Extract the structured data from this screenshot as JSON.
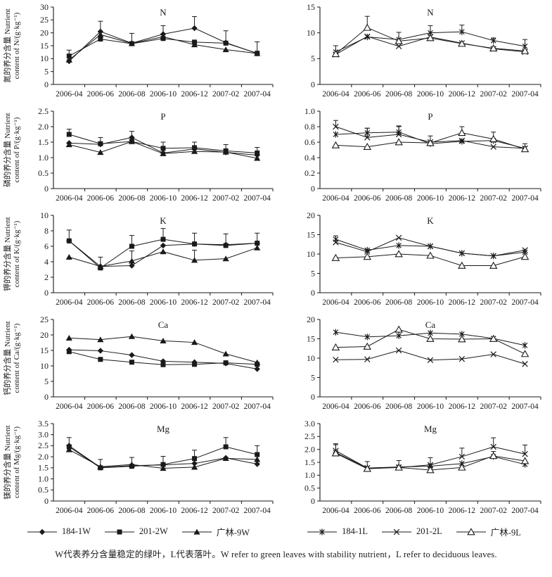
{
  "ink": "#1a1a1a",
  "caption": "W代表养分含量稳定的绿叶，L代表落叶。W refer to green leaves with stability nutrient，L refer to deciduous leaves.",
  "categories": [
    "2006-04",
    "2006-06",
    "2006-08",
    "2006-10",
    "2006-12",
    "2007-02",
    "2007-04"
  ],
  "legends": {
    "left": [
      {
        "marker": "diamond",
        "label": "184-1W"
      },
      {
        "marker": "square",
        "label": "201-2W"
      },
      {
        "marker": "triangle",
        "label": "广林-9W"
      }
    ],
    "right": [
      {
        "marker": "star",
        "label": "184-1L"
      },
      {
        "marker": "x",
        "label": "201-2L"
      },
      {
        "marker": "triangle-open",
        "label": "广林-9L"
      }
    ]
  },
  "chart_data": [
    {
      "type": "line",
      "title": "N",
      "col": "left",
      "ylabel_cn": "氮的养分含量 Nutrient",
      "ylabel_en": "content of N/(g·kg⁻¹)",
      "ylim": [
        0,
        30
      ],
      "yticks": [
        [
          0,
          "0"
        ],
        [
          5,
          "5"
        ],
        [
          10,
          "10"
        ],
        [
          15,
          "15"
        ],
        [
          20,
          "20"
        ],
        [
          25,
          "25"
        ],
        [
          30,
          "30"
        ]
      ],
      "series": [
        {
          "name": "184-1W",
          "marker": "diamond",
          "values": [
            9.0,
            20.5,
            16.0,
            19.5,
            21.8,
            16.2,
            12.0
          ],
          "err": [
            0.6,
            4.0,
            3.8,
            3.3,
            4.5,
            4.6,
            4.5
          ]
        },
        {
          "name": "201-2W",
          "marker": "square",
          "values": [
            11.0,
            17.6,
            15.8,
            17.8,
            16.4,
            16.0,
            12.1
          ],
          "err": [
            2.3,
            0,
            0,
            0,
            0,
            0,
            0
          ]
        },
        {
          "name": "广林-9W",
          "marker": "triangle",
          "values": [
            9.5,
            19.3,
            15.9,
            18.5,
            15.4,
            13.5,
            12.0
          ],
          "err": [
            0,
            0,
            0,
            0,
            0,
            0,
            0
          ]
        }
      ]
    },
    {
      "type": "line",
      "title": "N",
      "col": "right",
      "ylabel_cn": "",
      "ylabel_en": "",
      "ylim": [
        0,
        15
      ],
      "yticks": [
        [
          0,
          "0"
        ],
        [
          5,
          "5"
        ],
        [
          10,
          "10"
        ],
        [
          15,
          "15"
        ]
      ],
      "series": [
        {
          "name": "184-1L",
          "marker": "star",
          "values": [
            6.3,
            9.2,
            8.7,
            10.0,
            10.2,
            8.5,
            7.4
          ],
          "err": [
            1.2,
            0,
            1.4,
            1.4,
            1.3,
            0.5,
            1.3
          ]
        },
        {
          "name": "201-2L",
          "marker": "x",
          "values": [
            5.8,
            9.3,
            7.4,
            9.2,
            8.0,
            6.9,
            6.3
          ],
          "err": [
            0,
            0,
            0,
            0,
            0,
            0,
            0
          ]
        },
        {
          "name": "广林-9L",
          "marker": "triangle-open",
          "values": [
            5.9,
            11.0,
            8.4,
            9.0,
            7.9,
            7.0,
            6.5
          ],
          "err": [
            0,
            2.2,
            0,
            0,
            0,
            0,
            0
          ]
        }
      ]
    },
    {
      "type": "line",
      "title": "P",
      "col": "left",
      "ylabel_cn": "磷的养分含量 Nutrient",
      "ylabel_en": "content of P/(g·kg⁻¹)",
      "ylim": [
        0,
        2.5
      ],
      "yticks": [
        [
          0,
          "0"
        ],
        [
          0.5,
          "0.5"
        ],
        [
          1.0,
          "1.0"
        ],
        [
          1.5,
          "1.5"
        ],
        [
          2.0,
          "2.0"
        ],
        [
          2.5,
          "2.5"
        ]
      ],
      "series": [
        {
          "name": "184-1W",
          "marker": "diamond",
          "values": [
            1.47,
            1.43,
            1.65,
            1.15,
            1.28,
            1.17,
            1.08
          ],
          "err": [
            0,
            0,
            0.2,
            0,
            0,
            0,
            0
          ]
        },
        {
          "name": "201-2W",
          "marker": "square",
          "values": [
            1.75,
            1.45,
            1.52,
            1.3,
            1.32,
            1.22,
            1.15
          ],
          "err": [
            0.17,
            0.2,
            0,
            0.2,
            0.18,
            0.2,
            0.18
          ]
        },
        {
          "name": "广林-9W",
          "marker": "triangle",
          "values": [
            1.42,
            1.17,
            1.52,
            1.13,
            1.2,
            1.18,
            0.98
          ],
          "err": [
            0,
            0,
            0,
            0,
            0,
            0,
            0.12
          ]
        }
      ]
    },
    {
      "type": "line",
      "title": "P",
      "col": "right",
      "ylabel_cn": "",
      "ylabel_en": "",
      "ylim": [
        0,
        1.0
      ],
      "yticks": [
        [
          0,
          "0"
        ],
        [
          0.2,
          "0.2"
        ],
        [
          0.4,
          "0.4"
        ],
        [
          0.6,
          "0.6"
        ],
        [
          0.8,
          "0.8"
        ],
        [
          1.0,
          "1.0"
        ]
      ],
      "series": [
        {
          "name": "184-1L",
          "marker": "star",
          "values": [
            0.7,
            0.72,
            0.73,
            0.58,
            0.61,
            0.62,
            0.52
          ],
          "err": [
            0,
            0.06,
            0.08,
            0,
            0,
            0,
            0.06
          ]
        },
        {
          "name": "201-2L",
          "marker": "x",
          "values": [
            0.8,
            0.66,
            0.7,
            0.6,
            0.62,
            0.54,
            0.52
          ],
          "err": [
            0.08,
            0.12,
            0.1,
            0.08,
            0,
            0,
            0
          ]
        },
        {
          "name": "广林-9L",
          "marker": "triangle-open",
          "values": [
            0.56,
            0.54,
            0.6,
            0.59,
            0.72,
            0.64,
            0.51
          ],
          "err": [
            0,
            0,
            0,
            0,
            0.08,
            0.09,
            0
          ]
        }
      ]
    },
    {
      "type": "line",
      "title": "K",
      "col": "left",
      "ylabel_cn": "钾的养分含量 Nutrient",
      "ylabel_en": "content of K/(g·kg⁻¹)",
      "ylim": [
        0,
        10
      ],
      "yticks": [
        [
          0,
          "0"
        ],
        [
          2,
          "2"
        ],
        [
          4,
          "4"
        ],
        [
          6,
          "6"
        ],
        [
          8,
          "8"
        ],
        [
          10,
          "10"
        ]
      ],
      "series": [
        {
          "name": "184-1W",
          "marker": "diamond",
          "values": [
            6.7,
            3.4,
            3.5,
            6.1,
            6.3,
            6.2,
            6.4
          ],
          "err": [
            0,
            1.2,
            0,
            0,
            0,
            0,
            0
          ]
        },
        {
          "name": "201-2W",
          "marker": "square",
          "values": [
            6.7,
            3.2,
            6.0,
            6.9,
            6.3,
            6.1,
            6.4
          ],
          "err": [
            1.4,
            0,
            1.4,
            1.4,
            1.4,
            1.5,
            1.3
          ]
        },
        {
          "name": "广林-9W",
          "marker": "triangle",
          "values": [
            4.6,
            3.4,
            4.1,
            5.3,
            4.2,
            4.4,
            5.8
          ],
          "err": [
            0,
            0,
            1.3,
            0,
            1.3,
            0,
            0
          ]
        }
      ]
    },
    {
      "type": "line",
      "title": "K",
      "col": "right",
      "ylabel_cn": "",
      "ylabel_en": "",
      "ylim": [
        0,
        20
      ],
      "yticks": [
        [
          0,
          "0"
        ],
        [
          5,
          "5"
        ],
        [
          10,
          "10"
        ],
        [
          15,
          "15"
        ],
        [
          20,
          "20"
        ]
      ],
      "series": [
        {
          "name": "184-1L",
          "marker": "star",
          "values": [
            13.8,
            11.0,
            12.2,
            12.0,
            10.2,
            9.5,
            10.5
          ],
          "err": [
            0.9,
            0,
            0,
            0,
            0,
            0,
            0
          ]
        },
        {
          "name": "201-2L",
          "marker": "x",
          "values": [
            13.0,
            10.6,
            14.2,
            12.0,
            10.2,
            9.5,
            11.0
          ],
          "err": [
            0,
            0,
            0,
            0,
            0,
            0,
            0
          ]
        },
        {
          "name": "广林-9L",
          "marker": "triangle-open",
          "values": [
            9.0,
            9.3,
            10.0,
            9.6,
            7.0,
            7.0,
            9.3
          ],
          "err": [
            0,
            0,
            0,
            0,
            0,
            0,
            0
          ]
        }
      ]
    },
    {
      "type": "line",
      "title": "Ca",
      "col": "left",
      "ylabel_cn": "钙的养分含量 Nutrient",
      "ylabel_en": "content of Ca/(g·kg⁻¹)",
      "ylim": [
        0,
        25
      ],
      "yticks": [
        [
          0,
          "0"
        ],
        [
          5,
          "5"
        ],
        [
          10,
          "10"
        ],
        [
          15,
          "15"
        ],
        [
          20,
          "20"
        ],
        [
          25,
          "25"
        ]
      ],
      "series": [
        {
          "name": "184-1W",
          "marker": "diamond",
          "values": [
            15.2,
            14.9,
            13.5,
            11.5,
            11.2,
            10.8,
            9.0
          ],
          "err": [
            0,
            0,
            0,
            0,
            0,
            0,
            0
          ]
        },
        {
          "name": "201-2W",
          "marker": "square",
          "values": [
            14.6,
            12.1,
            11.2,
            10.4,
            10.5,
            11.0,
            10.5
          ],
          "err": [
            0,
            0,
            0,
            0,
            0,
            0,
            0
          ]
        },
        {
          "name": "广林-9W",
          "marker": "triangle",
          "values": [
            19.0,
            18.5,
            19.5,
            18.1,
            17.6,
            13.9,
            11.1
          ],
          "err": [
            0,
            0,
            0,
            0,
            0,
            0,
            0
          ]
        }
      ]
    },
    {
      "type": "line",
      "title": "Ca",
      "col": "right",
      "ylabel_cn": "",
      "ylabel_en": "",
      "ylim": [
        0,
        20
      ],
      "yticks": [
        [
          0,
          "0"
        ],
        [
          5,
          "5"
        ],
        [
          10,
          "10"
        ],
        [
          15,
          "15"
        ],
        [
          20,
          "20"
        ]
      ],
      "series": [
        {
          "name": "184-1L",
          "marker": "star",
          "values": [
            16.7,
            15.5,
            15.8,
            16.5,
            16.2,
            15.1,
            13.3
          ],
          "err": [
            0,
            0,
            0,
            0,
            0,
            0,
            0
          ]
        },
        {
          "name": "201-2L",
          "marker": "x",
          "values": [
            9.6,
            9.7,
            12.0,
            9.5,
            9.8,
            11.0,
            8.5
          ],
          "err": [
            0,
            0,
            0,
            0,
            0,
            0,
            0
          ]
        },
        {
          "name": "广林-9L",
          "marker": "triangle-open",
          "values": [
            12.8,
            13.0,
            17.4,
            15.0,
            14.9,
            15.0,
            11.1
          ],
          "err": [
            0,
            0,
            0,
            0,
            0,
            0,
            0
          ]
        }
      ]
    },
    {
      "type": "line",
      "title": "Mg",
      "col": "left",
      "ylabel_cn": "镁的养分含量 Nutrient",
      "ylabel_en": "content of Mg/(g·kg⁻¹)",
      "ylim": [
        0,
        3.5
      ],
      "yticks": [
        [
          0,
          "0"
        ],
        [
          0.5,
          "0.5"
        ],
        [
          1.0,
          "1.0"
        ],
        [
          1.5,
          "1.5"
        ],
        [
          2.0,
          "2.0"
        ],
        [
          2.5,
          "2.5"
        ],
        [
          3.0,
          "3.0"
        ],
        [
          3.5,
          "3.5"
        ]
      ],
      "series": [
        {
          "name": "184-1W",
          "marker": "diamond",
          "values": [
            2.5,
            1.52,
            1.6,
            1.63,
            1.7,
            1.95,
            1.67
          ],
          "err": [
            0.37,
            0,
            0,
            0,
            0,
            0,
            0
          ]
        },
        {
          "name": "201-2W",
          "marker": "square",
          "values": [
            2.45,
            1.5,
            1.57,
            1.65,
            1.92,
            2.45,
            2.1
          ],
          "err": [
            0,
            0,
            0,
            0.37,
            0.38,
            0.42,
            0.4
          ]
        },
        {
          "name": "广林-9W",
          "marker": "triangle",
          "values": [
            2.32,
            1.55,
            1.65,
            1.48,
            1.53,
            1.93,
            1.88
          ],
          "err": [
            0,
            0.33,
            0.32,
            0,
            0,
            0,
            0
          ]
        }
      ]
    },
    {
      "type": "line",
      "title": "Mg",
      "col": "right",
      "ylabel_cn": "",
      "ylabel_en": "",
      "ylim": [
        0,
        3.0
      ],
      "yticks": [
        [
          0,
          "0"
        ],
        [
          0.5,
          "0.5"
        ],
        [
          1.0,
          "1.0"
        ],
        [
          1.5,
          "1.5"
        ],
        [
          2.0,
          "2.0"
        ],
        [
          2.5,
          "2.5"
        ],
        [
          3.0,
          "3.0"
        ]
      ],
      "series": [
        {
          "name": "184-1L",
          "marker": "star",
          "values": [
            1.88,
            1.28,
            1.32,
            1.35,
            1.45,
            1.72,
            1.42
          ],
          "err": [
            0.3,
            0.25,
            0.25,
            0,
            0,
            0.2,
            0
          ]
        },
        {
          "name": "201-2L",
          "marker": "x",
          "values": [
            1.95,
            1.28,
            1.3,
            1.4,
            1.72,
            2.1,
            1.82
          ],
          "err": [
            0.27,
            0,
            0,
            0.28,
            0.33,
            0.35,
            0.35
          ]
        },
        {
          "name": "广林-9L",
          "marker": "triangle-open",
          "values": [
            1.85,
            1.25,
            1.3,
            1.2,
            1.3,
            1.75,
            1.55
          ],
          "err": [
            0,
            0,
            0,
            0,
            0,
            0,
            0
          ]
        }
      ]
    }
  ]
}
